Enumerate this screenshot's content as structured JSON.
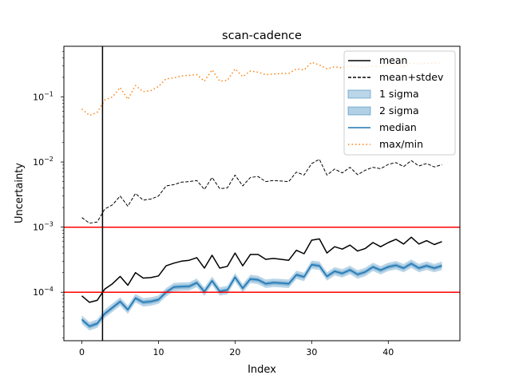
{
  "chart_data": {
    "type": "line",
    "title": "scan-cadence",
    "xlabel": "Index",
    "ylabel": "Uncertainty",
    "yscale": "log",
    "xlim": [
      -2.35,
      49.35
    ],
    "ylim": [
      1.8e-05,
      0.6
    ],
    "x_ticks": [
      0,
      10,
      20,
      30,
      40
    ],
    "y_ticks": [
      {
        "value": 0.0001,
        "base": "10",
        "exp": "−4"
      },
      {
        "value": 0.001,
        "base": "10",
        "exp": "−3"
      },
      {
        "value": 0.01,
        "base": "10",
        "exp": "−2"
      },
      {
        "value": 0.1,
        "base": "10",
        "exp": "−1"
      }
    ],
    "legend_position": "top-right",
    "legend": [
      {
        "label": "mean",
        "kind": "line",
        "color": "#000000",
        "dash": ""
      },
      {
        "label": "mean+stdev",
        "kind": "line",
        "color": "#000000",
        "dash": "4,2"
      },
      {
        "label": "1 sigma",
        "kind": "patch",
        "color": "#1f77b4",
        "opacity": 0.3
      },
      {
        "label": "2 sigma",
        "kind": "patch",
        "color": "#1f77b4",
        "opacity": 0.35
      },
      {
        "label": "median",
        "kind": "line",
        "color": "#1f77b4",
        "dash": ""
      },
      {
        "label": "max/min",
        "kind": "line",
        "color": "#ff7f0e",
        "dash": "1.5,3"
      }
    ],
    "hlines": [
      0.001,
      0.0001
    ],
    "hline_color": "#ff0000",
    "vline": 2.7,
    "x": [
      0,
      1,
      2,
      3,
      4,
      5,
      6,
      7,
      8,
      9,
      10,
      11,
      12,
      13,
      14,
      15,
      16,
      17,
      18,
      19,
      20,
      21,
      22,
      23,
      24,
      25,
      26,
      27,
      28,
      29,
      30,
      31,
      32,
      33,
      34,
      35,
      36,
      37,
      38,
      39,
      40,
      41,
      42,
      43,
      44,
      45,
      46,
      47
    ],
    "series": [
      {
        "name": "max/min",
        "style": "max",
        "values": [
          0.065,
          0.052,
          0.058,
          0.09,
          0.1,
          0.14,
          0.092,
          0.15,
          0.12,
          0.125,
          0.145,
          0.19,
          0.195,
          0.21,
          0.215,
          0.22,
          0.175,
          0.26,
          0.175,
          0.18,
          0.27,
          0.205,
          0.25,
          0.24,
          0.22,
          0.225,
          0.23,
          0.23,
          0.27,
          0.26,
          0.34,
          0.31,
          0.27,
          0.29,
          0.28,
          0.3,
          0.29,
          0.29,
          0.3,
          0.29,
          0.31,
          0.32,
          0.29,
          0.33,
          0.32,
          0.33,
          0.33,
          0.34
        ]
      },
      {
        "name": "mean+stdev",
        "style": "meanstd",
        "values": [
          0.0014,
          0.00115,
          0.0012,
          0.0019,
          0.0022,
          0.003,
          0.0021,
          0.0033,
          0.0026,
          0.0027,
          0.003,
          0.0043,
          0.0045,
          0.0049,
          0.005,
          0.0052,
          0.0038,
          0.0058,
          0.0039,
          0.004,
          0.0063,
          0.0043,
          0.0058,
          0.006,
          0.005,
          0.0052,
          0.0051,
          0.005,
          0.007,
          0.0063,
          0.0095,
          0.011,
          0.0063,
          0.0078,
          0.0068,
          0.0083,
          0.0064,
          0.0075,
          0.0083,
          0.0079,
          0.0092,
          0.0098,
          0.0085,
          0.0105,
          0.0087,
          0.0095,
          0.0084,
          0.0091
        ]
      },
      {
        "name": "mean",
        "style": "mean",
        "values": [
          8.8e-05,
          7e-05,
          7.5e-05,
          0.000112,
          0.000135,
          0.000175,
          0.000128,
          0.0002,
          0.000165,
          0.000168,
          0.000178,
          0.000255,
          0.00028,
          0.0003,
          0.00031,
          0.00034,
          0.000235,
          0.00037,
          0.000235,
          0.00025,
          0.0004,
          0.000255,
          0.00038,
          0.00038,
          0.00032,
          0.00033,
          0.00032,
          0.00031,
          0.00044,
          0.00039,
          0.00063,
          0.00066,
          0.0004,
          0.0005,
          0.00046,
          0.00053,
          0.00043,
          0.00047,
          0.00058,
          0.0005,
          0.00058,
          0.00065,
          0.00055,
          0.0007,
          0.00055,
          0.00062,
          0.00054,
          0.0006
        ]
      },
      {
        "name": "median",
        "style": "median",
        "values": [
          3.8e-05,
          3e-05,
          3.3e-05,
          4.7e-05,
          5.8e-05,
          7.2e-05,
          5.4e-05,
          8.1e-05,
          7e-05,
          7.2e-05,
          7.7e-05,
          0.0001,
          0.00012,
          0.000122,
          0.000123,
          0.00014,
          0.000102,
          0.00015,
          0.000103,
          0.000108,
          0.00017,
          0.000115,
          0.00016,
          0.000155,
          0.000135,
          0.00014,
          0.000138,
          0.000135,
          0.000185,
          0.000172,
          0.000265,
          0.000255,
          0.000175,
          0.00021,
          0.000195,
          0.00022,
          0.000188,
          0.000205,
          0.000245,
          0.000218,
          0.000245,
          0.00026,
          0.000235,
          0.000275,
          0.000235,
          0.000255,
          0.000235,
          0.000255
        ]
      }
    ]
  }
}
